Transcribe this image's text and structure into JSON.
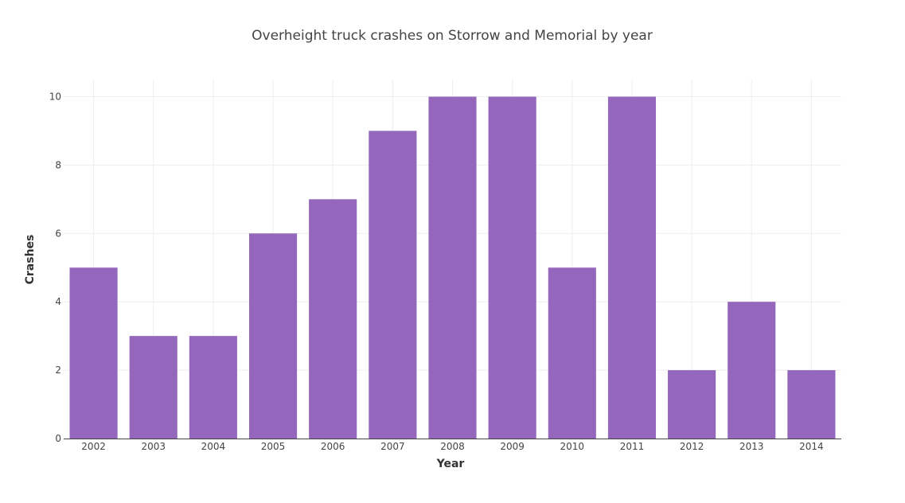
{
  "chart_data": {
    "type": "bar",
    "title": "Overheight truck crashes on Storrow and Memorial by year",
    "xlabel": "Year",
    "ylabel": "Crashes",
    "categories": [
      "2002",
      "2003",
      "2004",
      "2005",
      "2006",
      "2007",
      "2008",
      "2009",
      "2010",
      "2011",
      "2012",
      "2013",
      "2014"
    ],
    "values": [
      5,
      3,
      3,
      6,
      7,
      9,
      10,
      10,
      5,
      10,
      2,
      4,
      2
    ],
    "ylim": [
      0,
      10.5
    ],
    "yticks": [
      "0",
      "2",
      "4",
      "6",
      "8",
      "10"
    ],
    "grid": true,
    "bar_color": "#9467bd"
  }
}
